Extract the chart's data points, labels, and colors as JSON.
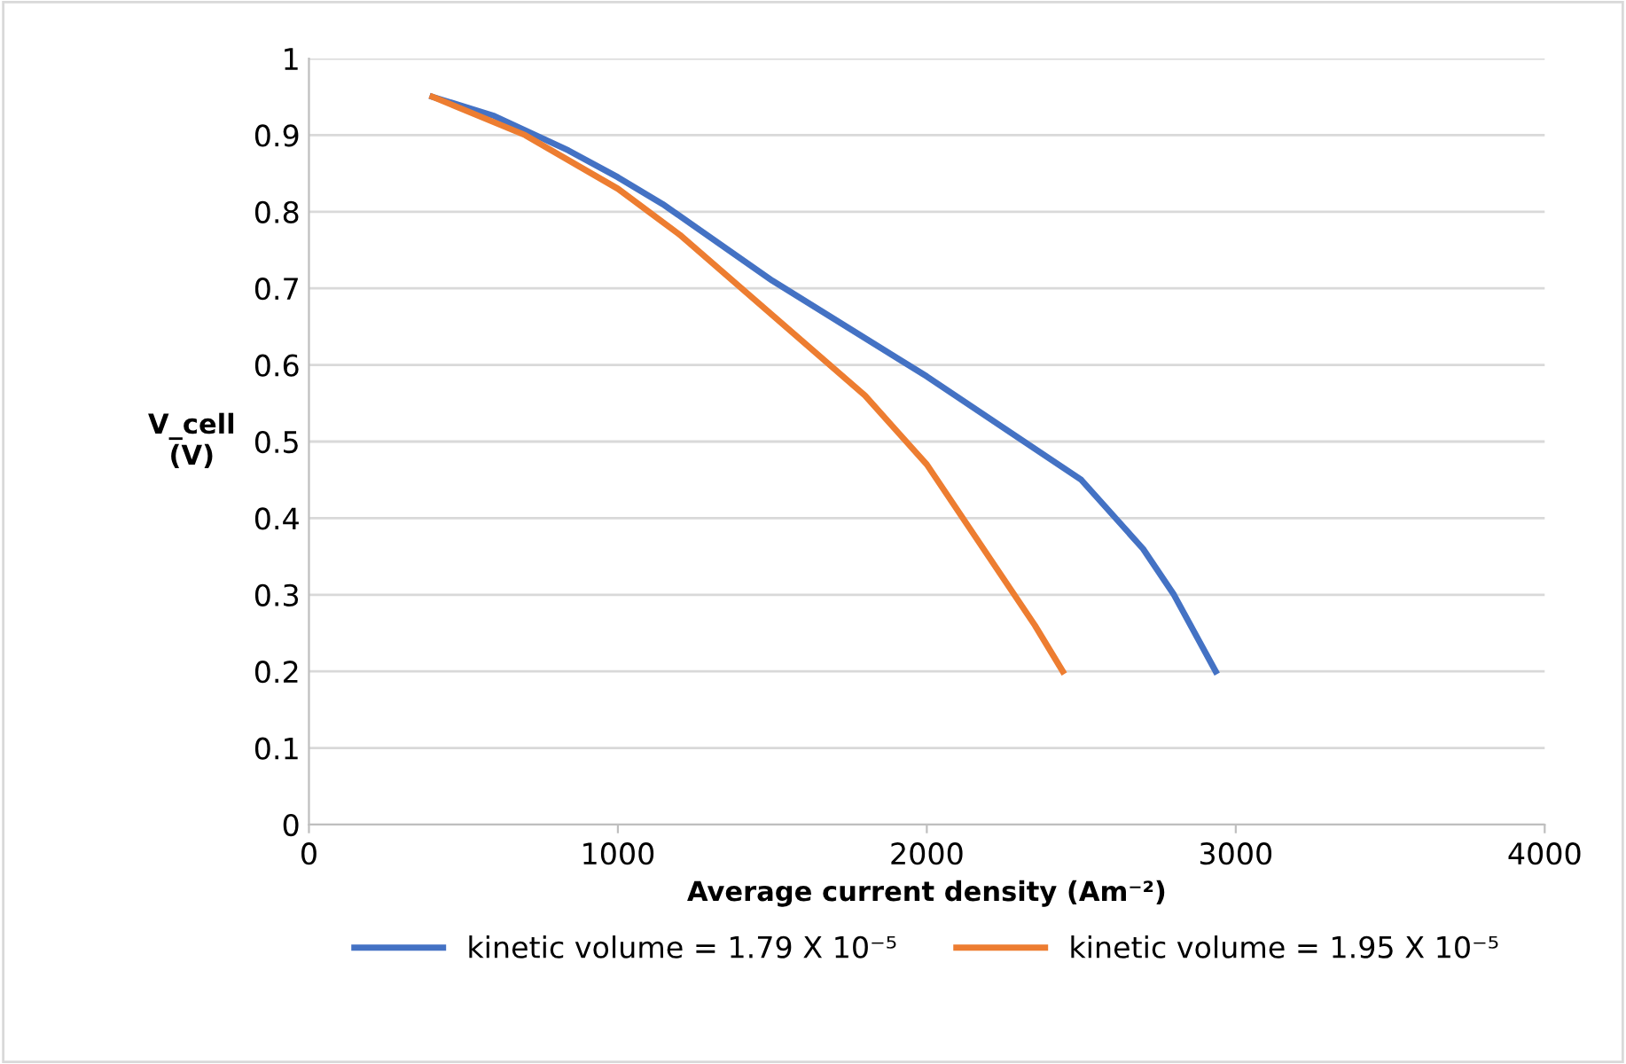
{
  "chart_data": {
    "type": "line",
    "xlabel": "Average current density (Am⁻²)",
    "ylabel": "V_cell\n(V)",
    "xlim": [
      0,
      4000
    ],
    "xticks": [
      0,
      1000,
      2000,
      3000,
      4000
    ],
    "ylim": [
      0,
      1
    ],
    "yticks": [
      0,
      0.1,
      0.2,
      0.3,
      0.4,
      0.5,
      0.6,
      0.7,
      0.8,
      0.9,
      1
    ],
    "grid": "y",
    "legend": "bottom",
    "marker": "none",
    "line_style": "solid",
    "series": [
      {
        "name": "kinetic volume = 1.79 X 10⁻⁵",
        "color": "#4472c4",
        "x": [
          400,
          600,
          840,
          1000,
          1145,
          1500,
          2000,
          2500,
          2700,
          2800,
          2935
        ],
        "values": [
          0.95,
          0.925,
          0.88,
          0.845,
          0.81,
          0.71,
          0.585,
          0.45,
          0.36,
          0.3,
          0.2
        ]
      },
      {
        "name": "kinetic volume = 1.95 X 10⁻⁵",
        "color": "#ed7d31",
        "x": [
          400,
          700,
          1000,
          1200,
          1500,
          1800,
          2000,
          2200,
          2350,
          2440
        ],
        "values": [
          0.95,
          0.9,
          0.83,
          0.77,
          0.665,
          0.56,
          0.47,
          0.35,
          0.26,
          0.2
        ]
      }
    ]
  }
}
